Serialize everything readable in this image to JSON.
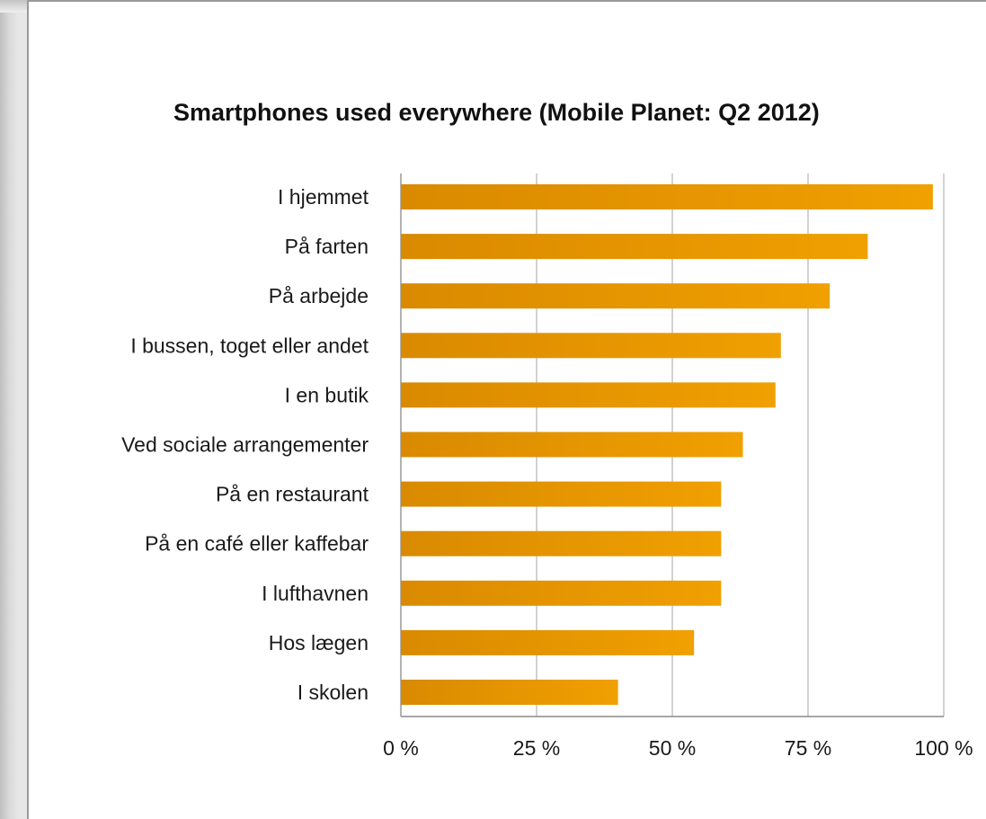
{
  "chart_data": {
    "type": "bar",
    "orientation": "horizontal",
    "title": "Smartphones used everywhere (Mobile Planet: Q2 2012)",
    "xlabel": "",
    "ylabel": "",
    "categories": [
      "I hjemmet",
      "På farten",
      "På arbejde",
      "I bussen, toget eller andet",
      "I en butik",
      "Ved sociale arrangementer",
      "På en restaurant",
      "På en café eller kaffebar",
      "I lufthavnen",
      "Hos lægen",
      "I skolen"
    ],
    "values": [
      98,
      86,
      79,
      70,
      69,
      63,
      59,
      59,
      59,
      54,
      40
    ],
    "xlim": [
      0,
      100
    ],
    "xticks": [
      0,
      25,
      50,
      75,
      100
    ],
    "xtick_labels": [
      "0 %",
      "25 %",
      "50 %",
      "75 %",
      "100 %"
    ],
    "grid": "vertical",
    "bar_color": "#f0a000",
    "bar_color_dark": "#d98a00"
  }
}
